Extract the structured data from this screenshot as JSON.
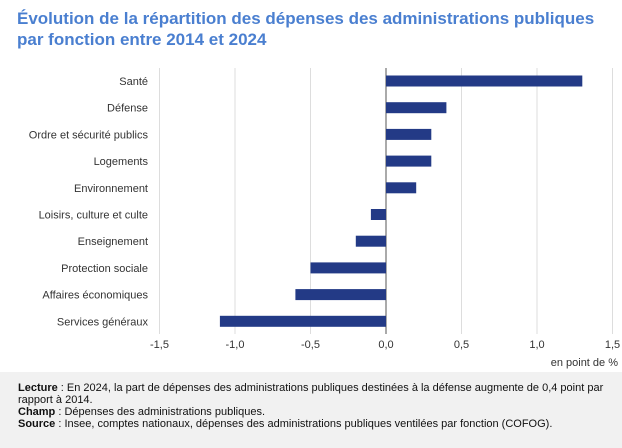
{
  "title": {
    "line1": "Évolution de la répartition des dépenses des administrations publiques",
    "line2": "par fonction entre 2014 et 2024"
  },
  "chart_data": {
    "type": "bar",
    "orientation": "horizontal",
    "categories": [
      "Santé",
      "Défense",
      "Ordre et sécurité publics",
      "Logements",
      "Environnement",
      "Loisirs, culture et culte",
      "Enseignement",
      "Protection sociale",
      "Affaires économiques",
      "Services généraux"
    ],
    "values": [
      1.3,
      0.4,
      0.3,
      0.3,
      0.2,
      -0.1,
      -0.2,
      -0.5,
      -0.6,
      -1.1
    ],
    "xlim": [
      -1.5,
      1.5
    ],
    "xticks": [
      -1.5,
      -1.0,
      -0.5,
      0.0,
      0.5,
      1.0,
      1.5
    ],
    "xtick_labels": [
      "-1,5",
      "-1,0",
      "-0,5",
      "0,0",
      "0,5",
      "1,0",
      "1,5"
    ],
    "xlabel": "en point de %",
    "bar_color": "#233a86",
    "grid": "vertical"
  },
  "notes": {
    "lecture_label": "Lecture",
    "lecture_text": " : En 2024, la part de dépenses des administrations publiques destinées à la défense augmente de 0,4 point par rapport à 2014.",
    "champ_label": "Champ",
    "champ_text": " : Dépenses des administrations publiques.",
    "source_label": "Source",
    "source_text": " : Insee, comptes nationaux, dépenses des administrations publiques ventilées par fonction (COFOG)."
  }
}
